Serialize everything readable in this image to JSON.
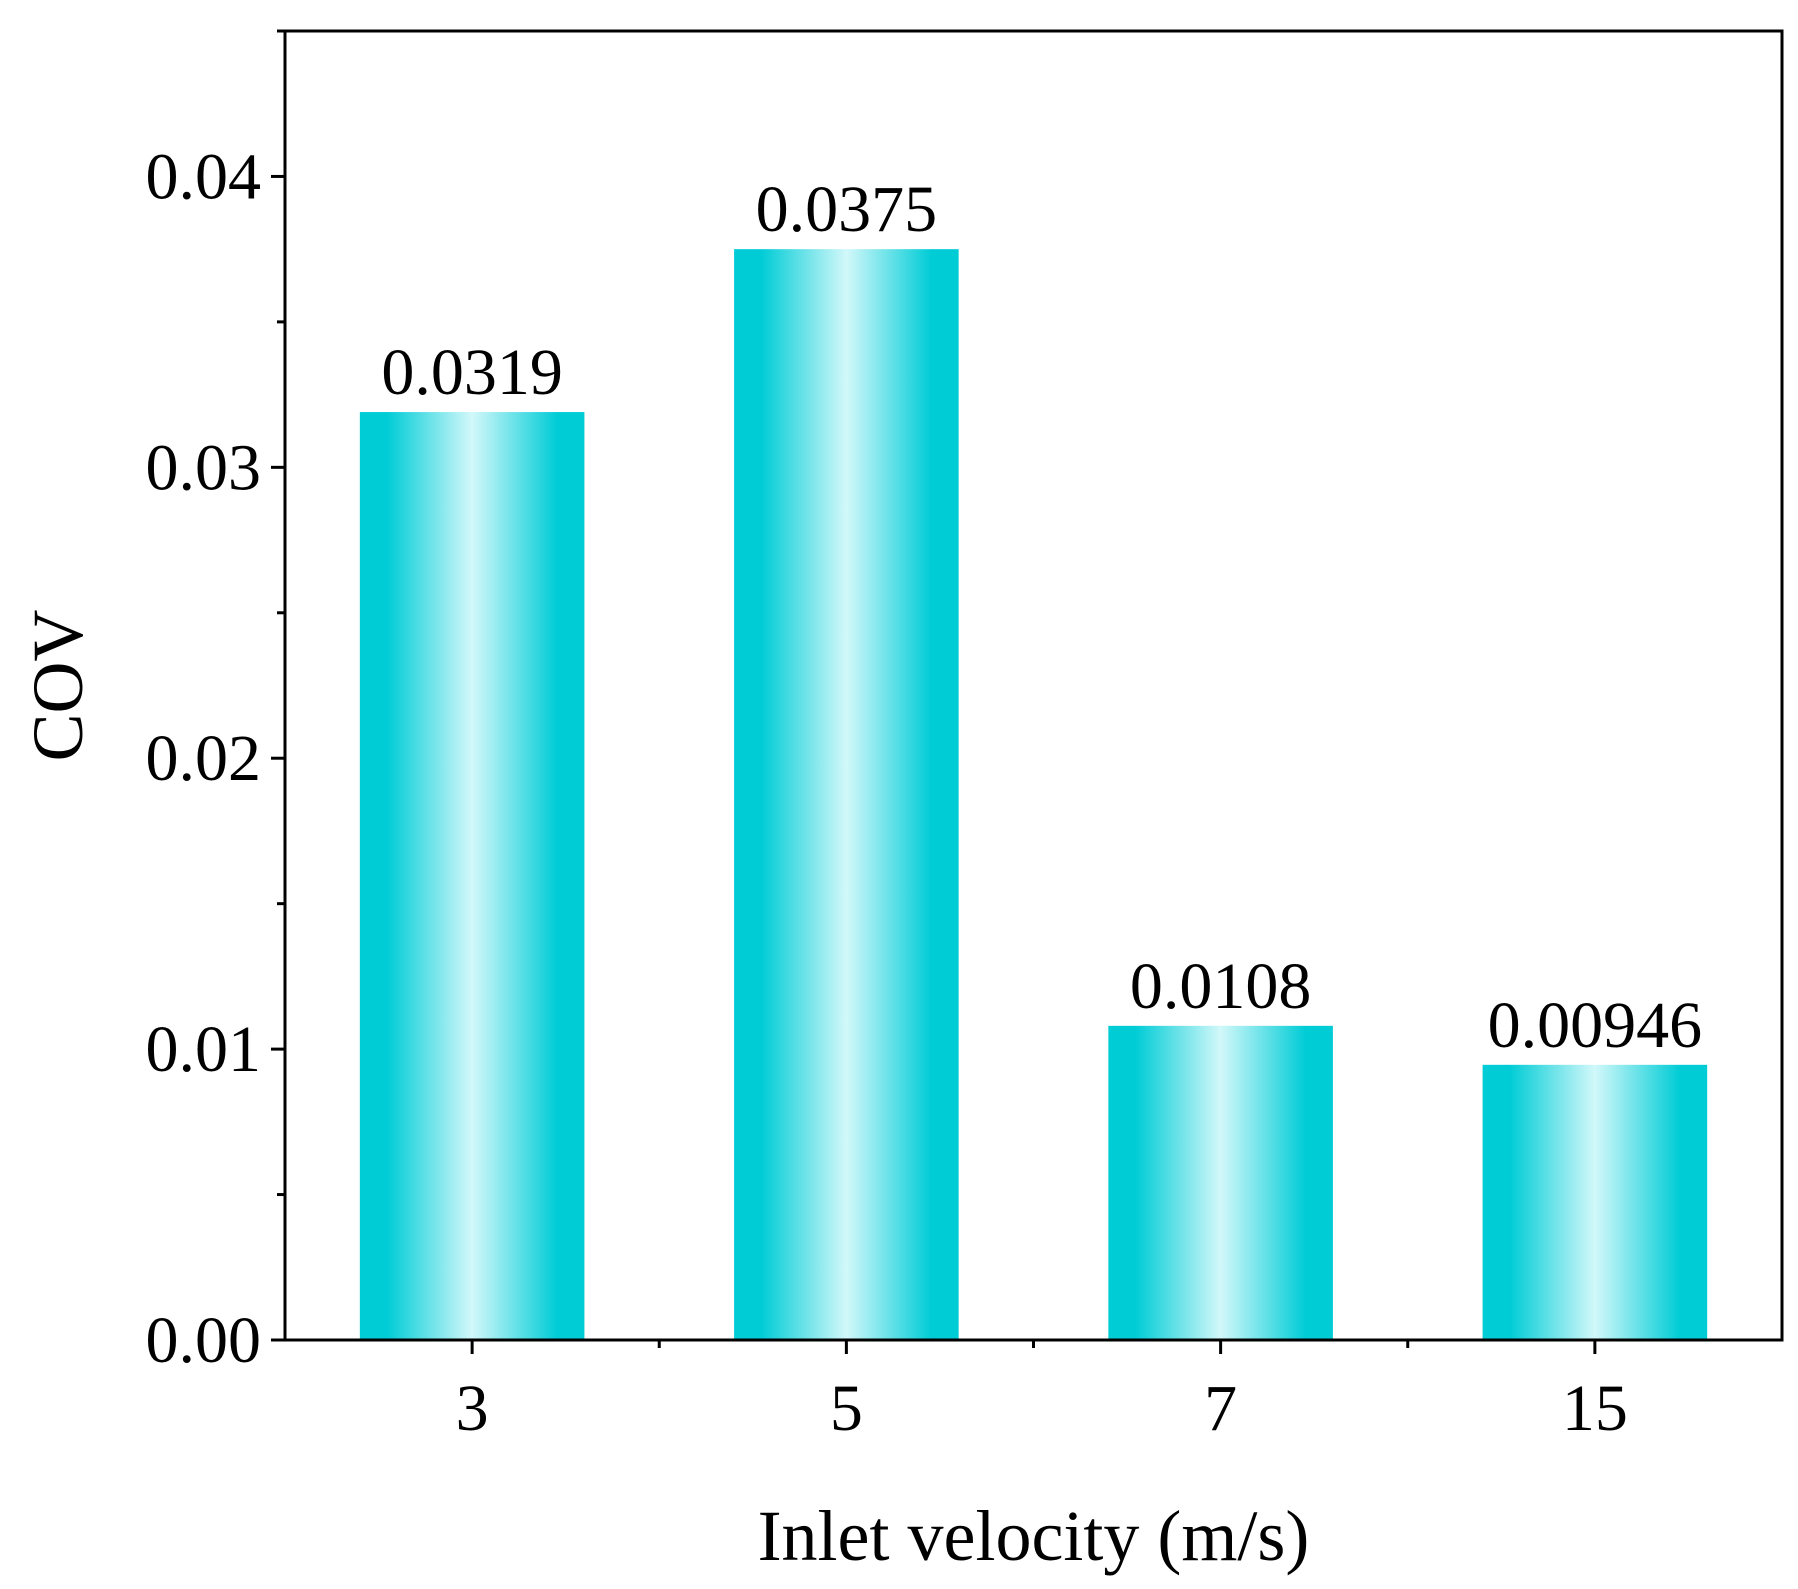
{
  "chart_data": {
    "type": "bar",
    "title": "",
    "xlabel": "Inlet velocity (m/s)",
    "ylabel": "COV",
    "categories": [
      "3",
      "5",
      "7",
      "15"
    ],
    "values": [
      0.0319,
      0.0375,
      0.0108,
      0.00946
    ],
    "data_labels": [
      "0.0319",
      "0.0375",
      "0.0108",
      "0.00946"
    ],
    "ylim": [
      0,
      0.045
    ],
    "yticks": [
      0.0,
      0.01,
      0.02,
      0.03,
      0.04
    ],
    "ytick_labels": [
      "0.00",
      "0.01",
      "0.02",
      "0.03",
      "0.04"
    ],
    "grid": false,
    "legend": "none",
    "colors": {
      "bar_edge": "#00ccd6",
      "bar_center": "#d2f8fa",
      "axis": "#000000"
    }
  }
}
